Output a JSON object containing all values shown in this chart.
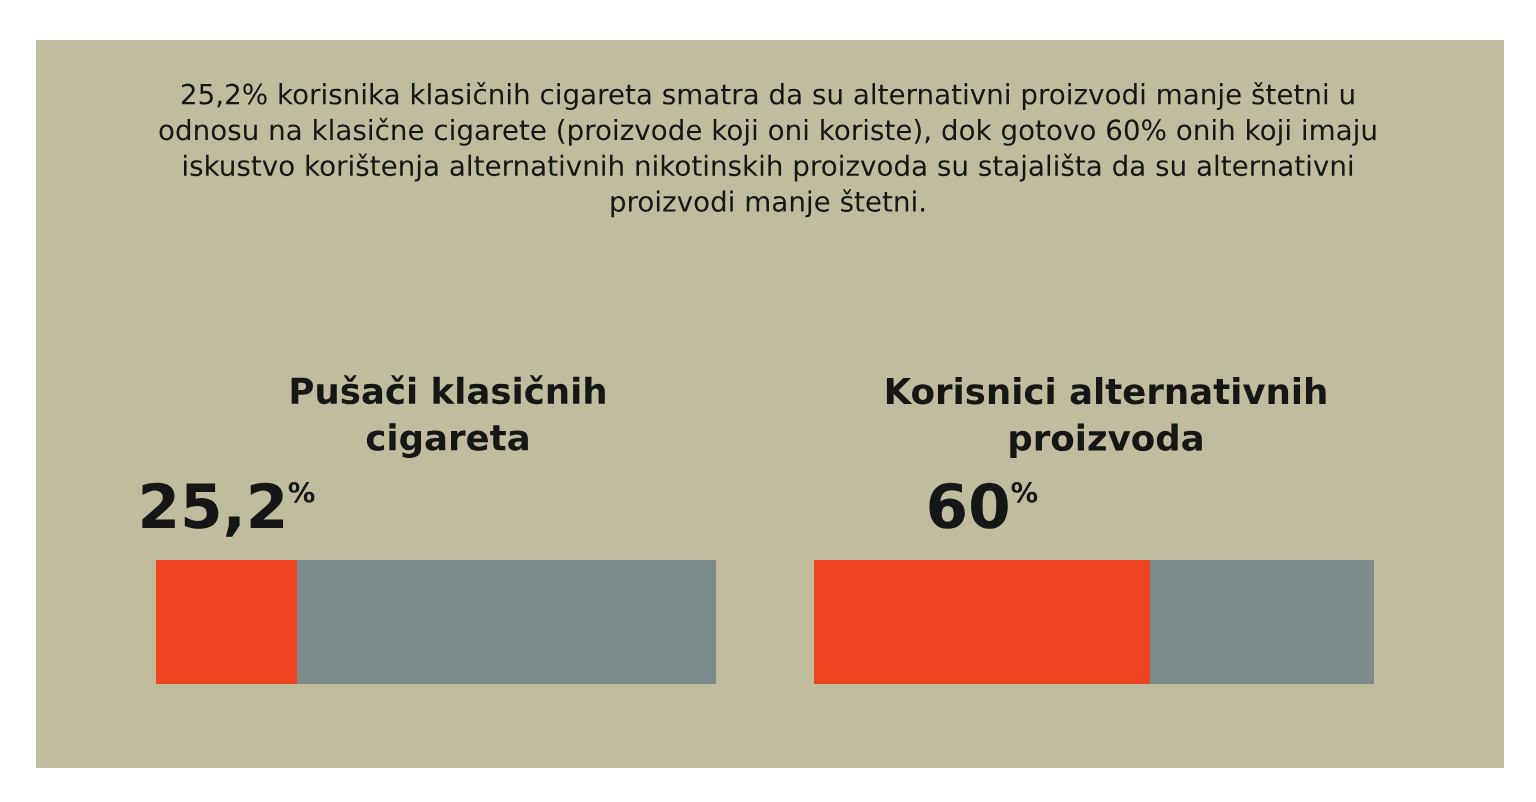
{
  "chart_data": [
    {
      "type": "other",
      "title": "25,2% korisnika klasičnih cigareta smatra da su alternativni proizvodi manje štetni u odnosu na klasične cigarete (proizvode koji oni koriste), dok gotovo 60% onih koji imaju iskustvo korištenja alternativnih nikotinskih proizvoda su stajališta da su alternativni proizvodi manje štetni."
    },
    {
      "type": "bar",
      "orientation": "horizontal",
      "stacked": true,
      "title": "Pušači klasičnih cigareta",
      "categories": [
        null
      ],
      "series": [
        {
          "color": "#ee4422",
          "values": [
            25.2
          ],
          "value_labels": [
            "25,2$^{%}$"
          ]
        },
        {
          "color": "#7b8a8b",
          "values": [
            74.8
          ]
        }
      ],
      "xlim": [
        0,
        100
      ],
      "tick_labels": false
    },
    {
      "type": "bar",
      "orientation": "horizontal",
      "stacked": true,
      "title": "Korisnici alternativnih proizvoda",
      "categories": [
        null
      ],
      "series": [
        {
          "color": "#ee4422",
          "values": [
            60
          ],
          "value_labels": [
            "60$^{%}$"
          ]
        },
        {
          "color": "#7b8a8b",
          "values": [
            40
          ]
        }
      ],
      "xlim": [
        0,
        100
      ],
      "tick_labels": false
    }
  ]
}
